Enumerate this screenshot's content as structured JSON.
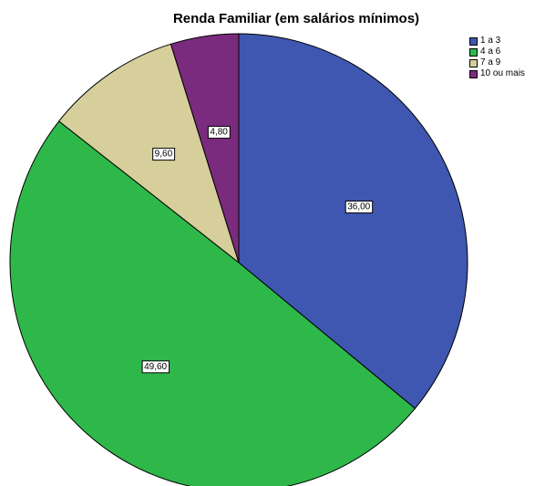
{
  "chart_data": {
    "type": "pie",
    "title": "Renda Familiar (em salários mínimos)",
    "categories": [
      "1 a 3",
      "4 a 6",
      "7 a 9",
      "10 ou mais"
    ],
    "values": [
      36.0,
      49.6,
      9.6,
      4.8
    ],
    "data_labels": [
      "36,00",
      "49,60",
      "9,60",
      "4,80"
    ],
    "colors": [
      "#3f57b0",
      "#2fb84a",
      "#d6cf9b",
      "#7b2b7e"
    ],
    "start_angle": "12 o'clock",
    "direction": "clockwise",
    "legend_position": "top-right"
  }
}
